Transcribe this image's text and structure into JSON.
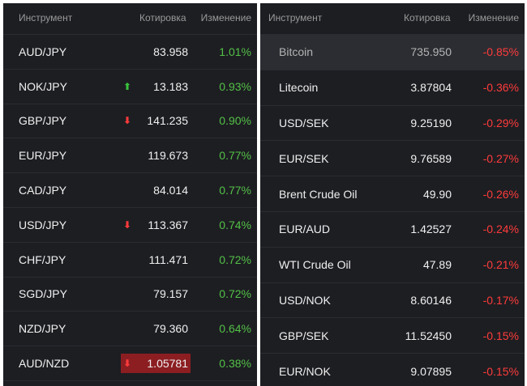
{
  "headers": {
    "instrument": "Инструмент",
    "quote": "Котировка",
    "change": "Изменение"
  },
  "colors": {
    "background": "#1d1e22",
    "positive": "#53c047",
    "negative": "#ff3b3b",
    "highlight_down": "#8c1e22"
  },
  "left_table": [
    {
      "name": "AUD/JPY",
      "quote": "83.958",
      "change": "1.01%",
      "arrow": ""
    },
    {
      "name": "NOK/JPY",
      "quote": "13.183",
      "change": "0.93%",
      "arrow": "up"
    },
    {
      "name": "GBP/JPY",
      "quote": "141.235",
      "change": "0.90%",
      "arrow": "down"
    },
    {
      "name": "EUR/JPY",
      "quote": "119.673",
      "change": "0.77%",
      "arrow": ""
    },
    {
      "name": "CAD/JPY",
      "quote": "84.014",
      "change": "0.77%",
      "arrow": ""
    },
    {
      "name": "USD/JPY",
      "quote": "113.367",
      "change": "0.74%",
      "arrow": "down"
    },
    {
      "name": "CHF/JPY",
      "quote": "111.471",
      "change": "0.72%",
      "arrow": ""
    },
    {
      "name": "SGD/JPY",
      "quote": "79.157",
      "change": "0.72%",
      "arrow": ""
    },
    {
      "name": "NZD/JPY",
      "quote": "79.360",
      "change": "0.64%",
      "arrow": ""
    },
    {
      "name": "AUD/NZD",
      "quote": "1.05781",
      "change": "0.38%",
      "arrow": "down",
      "quote_highlight": "down"
    }
  ],
  "right_table": [
    {
      "name": "Bitcoin",
      "quote": "735.950",
      "change": "-0.85%",
      "highlighted": true
    },
    {
      "name": "Litecoin",
      "quote": "3.87804",
      "change": "-0.36%"
    },
    {
      "name": "USD/SEK",
      "quote": "9.25190",
      "change": "-0.29%"
    },
    {
      "name": "EUR/SEK",
      "quote": "9.76589",
      "change": "-0.27%"
    },
    {
      "name": "Brent Crude Oil",
      "quote": "49.90",
      "change": "-0.26%"
    },
    {
      "name": "EUR/AUD",
      "quote": "1.42527",
      "change": "-0.24%"
    },
    {
      "name": "WTI Crude Oil",
      "quote": "47.89",
      "change": "-0.21%"
    },
    {
      "name": "USD/NOK",
      "quote": "8.60146",
      "change": "-0.17%"
    },
    {
      "name": "GBP/SEK",
      "quote": "11.52450",
      "change": "-0.15%"
    },
    {
      "name": "EUR/NOK",
      "quote": "9.07895",
      "change": "-0.15%"
    }
  ]
}
